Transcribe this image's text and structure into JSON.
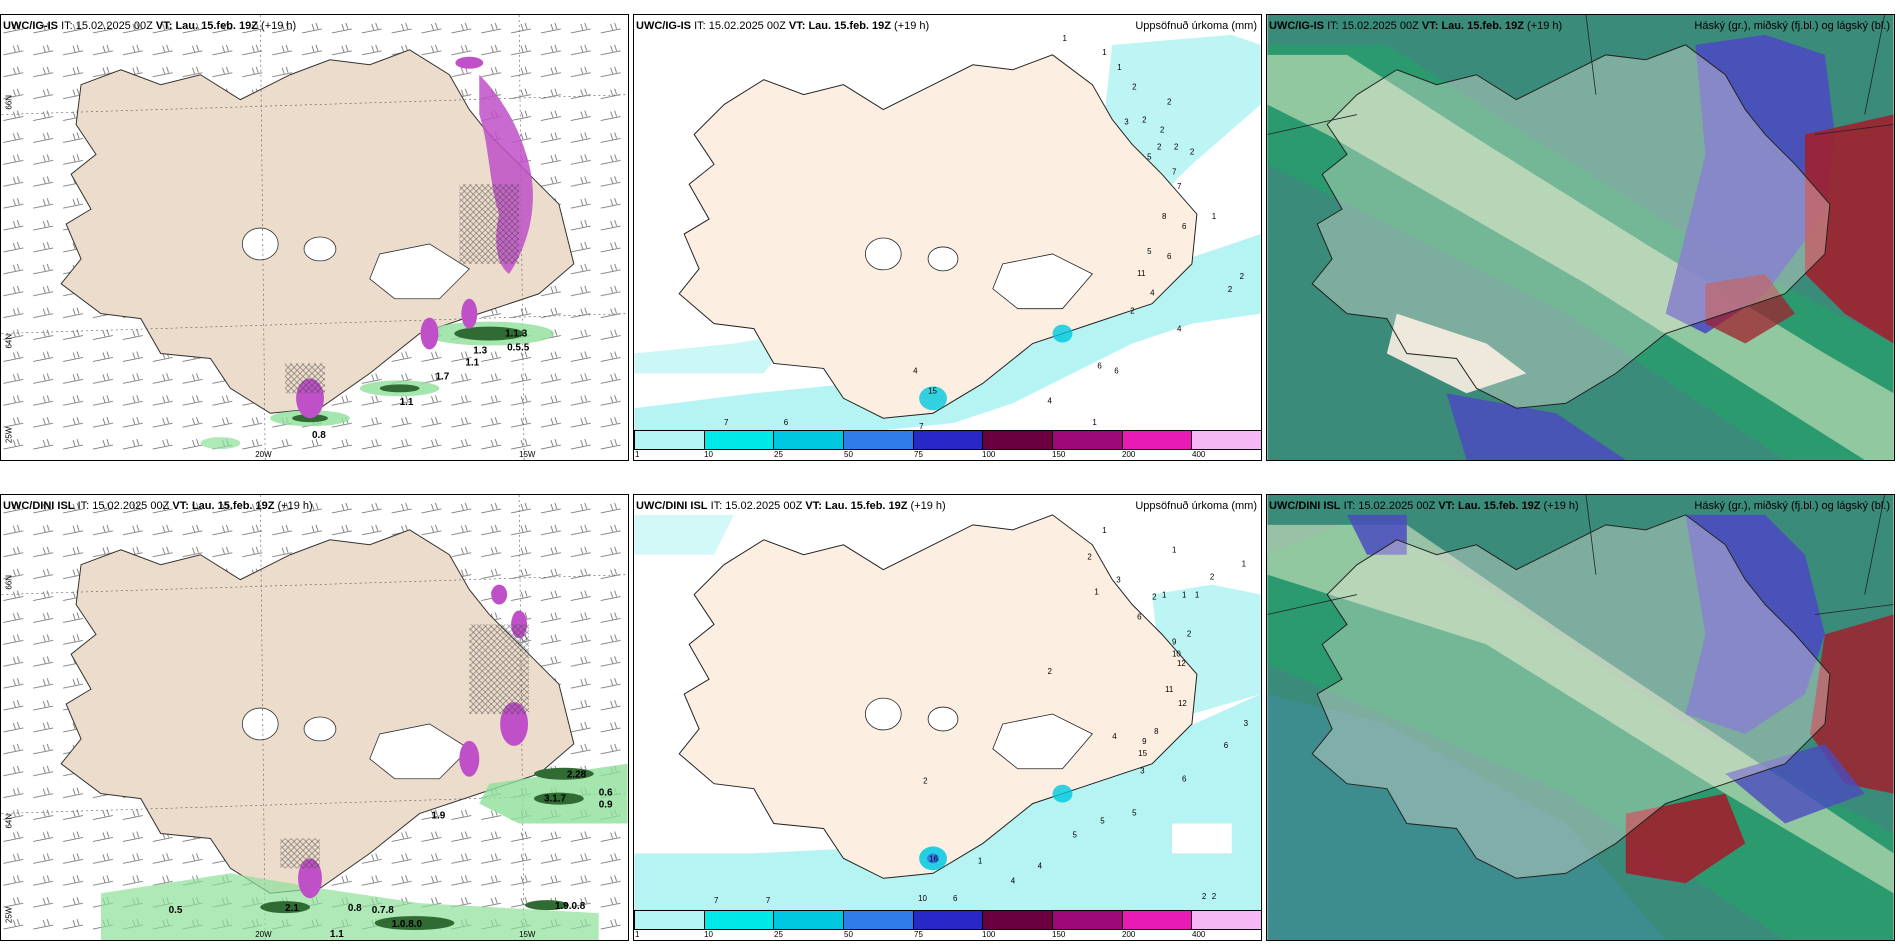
{
  "rows": [
    {
      "model": "UWC/IG-IS",
      "panel2_model": "UWC/IG-IS",
      "panel3_model": "UWC/IG-IS",
      "it_label": "IT:",
      "it_value": "15.02.2025 00Z",
      "vt_label": "VT:",
      "vt_value": "Lau. 15.feb. 19Z",
      "lead": "(+19 h)",
      "wind_values": [
        "0.8",
        "1.1",
        "1.7",
        "1.1",
        "1.3",
        "0.5.5",
        "1.1.3"
      ],
      "precip_values": [
        "1",
        "1",
        "1",
        "2",
        "2",
        "3",
        "2",
        "2",
        "2",
        "2",
        "2",
        "5",
        "7",
        "7",
        "1",
        "8",
        "6",
        "5",
        "6",
        "11",
        "4",
        "2",
        "2",
        "2",
        "4",
        "6",
        "6",
        "4",
        "1",
        "7",
        "6",
        "7",
        "4",
        "15"
      ],
      "cloud_legend": "Háský (gr.), miðský (fj.bl.) og lágský (bl.)",
      "precip_legend": "Uppsöfnuð úrkoma (mm)"
    },
    {
      "model": "UWC/DINI ISL",
      "panel2_model": "UWC/DINI ISL",
      "panel3_model": "UWC/DINI ISL",
      "it_label": "IT:",
      "it_value": "15.02.2025 00Z",
      "vt_label": "VT:",
      "vt_value": "Lau. 15.feb. 19Z",
      "lead": "(+19 h)",
      "wind_values": [
        "0.5",
        "1.1",
        "0.8",
        "0.7.8",
        "1.0.8.0",
        "1.9.0.8",
        "3.1.7",
        "0.6",
        "0.9",
        "2.28",
        "1.9",
        "2.1"
      ],
      "precip_values": [
        "1",
        "2",
        "1",
        "1",
        "2",
        "1",
        "1",
        "1",
        "2",
        "3",
        "1",
        "6",
        "10",
        "9",
        "12",
        "11",
        "12",
        "2",
        "2",
        "8",
        "9",
        "15",
        "3",
        "4",
        "3",
        "6",
        "6",
        "5",
        "5",
        "5",
        "4",
        "4",
        "2",
        "2",
        "7",
        "7",
        "10",
        "6",
        "1",
        "2",
        "16"
      ],
      "cloud_legend": "Háský (gr.), miðský (fj.bl.) og lágský (bl.)",
      "precip_legend": "Uppsöfnuð úrkoma (mm)"
    }
  ],
  "axes": {
    "lat_top": "66N",
    "lat_mid": "64N",
    "lon_left": "25W",
    "lon_mid": "20W",
    "lon_right": "15W"
  },
  "colorbar": {
    "ticks": [
      "1",
      "10",
      "25",
      "50",
      "75",
      "100",
      "150",
      "200",
      "400"
    ],
    "colors": [
      "#b4f5f5",
      "#00e8e8",
      "#00c8e0",
      "#2e7de8",
      "#2828c8",
      "#6a0040",
      "#9c0878",
      "#e81cb4",
      "#f5b8f5"
    ]
  },
  "colors": {
    "land": "#fcefe2",
    "land_wind": "#ecdccb",
    "glacier": "#ffffff",
    "sea_precip": "#b6f3f3",
    "cloud_sea": "#3a8b7a",
    "cloud_high": "#2a9b6e",
    "cloud_mid": "#4b4bbf",
    "cloud_low_red": "#a0202e",
    "wind_green": "#8fe09a",
    "wind_dark": "#2f6b33",
    "magenta": "#c050c8"
  }
}
